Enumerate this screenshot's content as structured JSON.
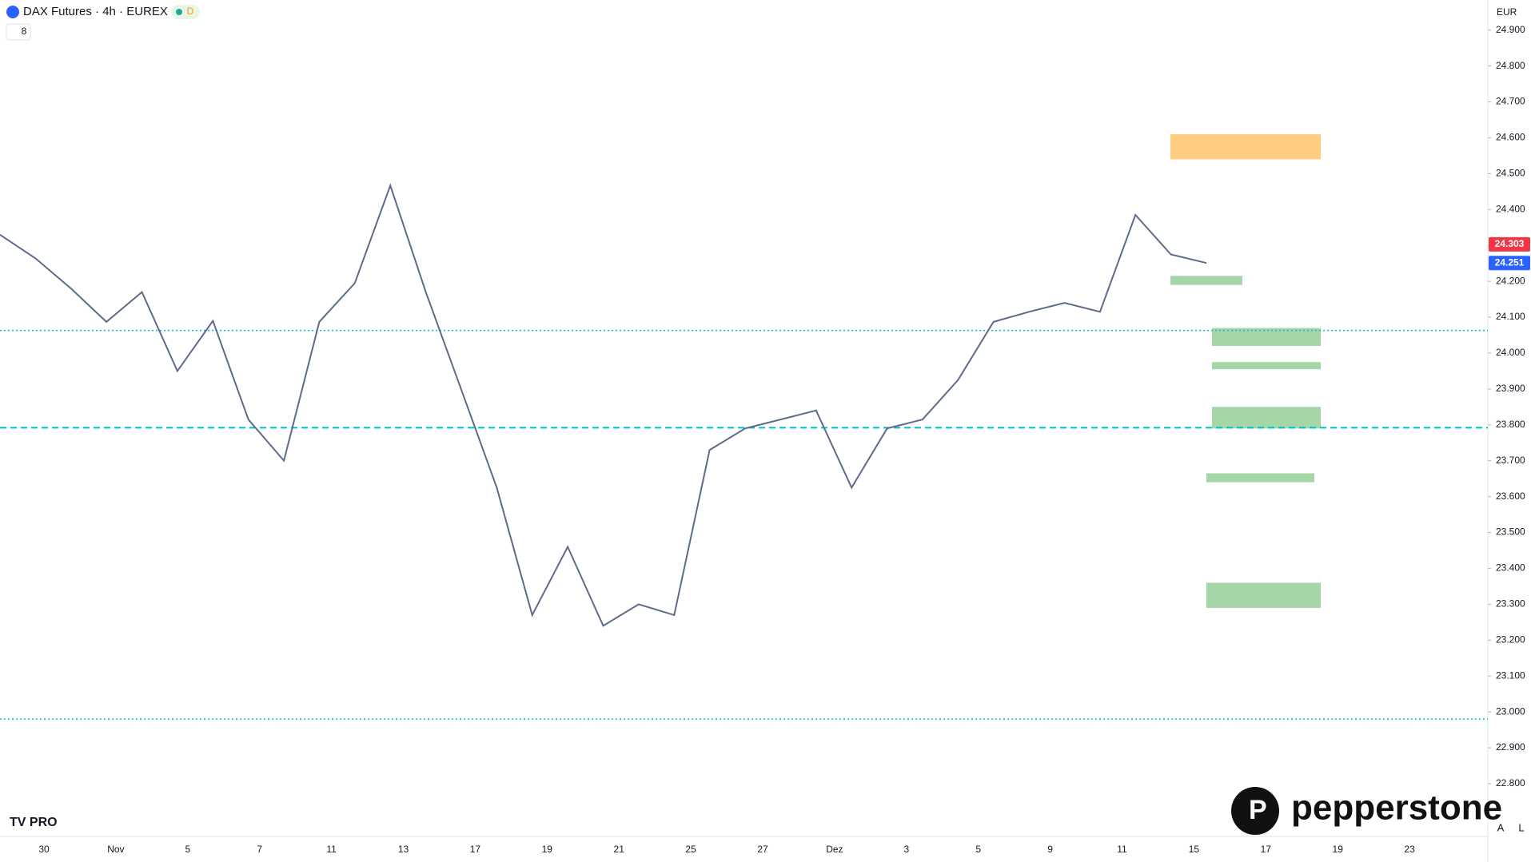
{
  "chart_data": {
    "type": "line",
    "title": "DAX Futures · 4h · EUREX",
    "badge": "D",
    "indicator_count": "8",
    "currency": "EUR",
    "logo": "pepperstone",
    "tv_logo": "TV PRO",
    "buttons": [
      "A",
      "L"
    ],
    "ylim": [
      22653,
      24984
    ],
    "yticks": [
      {
        "value": 22800,
        "label": "22.800"
      },
      {
        "value": 22900,
        "label": "22.900"
      },
      {
        "value": 23000,
        "label": "23.000"
      },
      {
        "value": 23100,
        "label": "23.100"
      },
      {
        "value": 23200,
        "label": "23.200"
      },
      {
        "value": 23300,
        "label": "23.300"
      },
      {
        "value": 23400,
        "label": "23.400"
      },
      {
        "value": 23500,
        "label": "23.500"
      },
      {
        "value": 23600,
        "label": "23.600"
      },
      {
        "value": 23700,
        "label": "23.700"
      },
      {
        "value": 23800,
        "label": "23.800"
      },
      {
        "value": 23900,
        "label": "23.900"
      },
      {
        "value": 24000,
        "label": "24.000"
      },
      {
        "value": 24100,
        "label": "24.100"
      },
      {
        "value": 24200,
        "label": "24.200"
      },
      {
        "value": 24300,
        "label": "24.300"
      },
      {
        "value": 24400,
        "label": "24.400"
      },
      {
        "value": 24500,
        "label": "24.500"
      },
      {
        "value": 24600,
        "label": "24.600"
      },
      {
        "value": 24700,
        "label": "24.700"
      },
      {
        "value": 24800,
        "label": "24.800"
      },
      {
        "value": 24900,
        "label": "24.900"
      }
    ],
    "x_labels": [
      "30",
      "Nov",
      "5",
      "7",
      "11",
      "13",
      "17",
      "19",
      "21",
      "25",
      "27",
      "Dez",
      "3",
      "5",
      "9",
      "11",
      "15",
      "17",
      "19",
      "23"
    ],
    "series": [
      {
        "name": "DAX Futures",
        "color": "#5d6b8a",
        "values": [
          24330,
          24264,
          24180,
          24087,
          24170,
          23950,
          24090,
          23815,
          23700,
          24087,
          24195,
          24467,
          24170,
          23898,
          23625,
          23270,
          23460,
          23240,
          23300,
          23270,
          23730,
          23790,
          23815,
          23840,
          23625,
          23790,
          23815,
          23925,
          24087,
          24115,
          24140,
          24115,
          24385,
          24275,
          24251
        ]
      }
    ],
    "zones": [
      {
        "low": 24540,
        "high": 24610,
        "color": "#ffcc80"
      },
      {
        "low": 24190,
        "high": 24215,
        "color": "#a5d6a7"
      },
      {
        "low": 24020,
        "high": 24070,
        "color": "#a5d6a7"
      },
      {
        "low": 23955,
        "high": 23975,
        "color": "#a5d6a7"
      },
      {
        "low": 23790,
        "high": 23850,
        "color": "#a5d6a7"
      },
      {
        "low": 23640,
        "high": 23665,
        "color": "#a5d6a7"
      },
      {
        "low": 23290,
        "high": 23360,
        "color": "#a5d6a7"
      }
    ],
    "levels": [
      {
        "value": 24063,
        "color": "#00bcd4",
        "style": "dotted"
      },
      {
        "value": 23792,
        "color": "#00bcd4",
        "style": "dashed"
      },
      {
        "value": 22980,
        "color": "#00bcd4",
        "style": "dotted"
      }
    ],
    "price_labels": [
      {
        "value": 24303,
        "label": "24.303",
        "color": "#f23645"
      },
      {
        "value": 24251,
        "label": "24.251",
        "color": "#2962ff"
      }
    ]
  }
}
